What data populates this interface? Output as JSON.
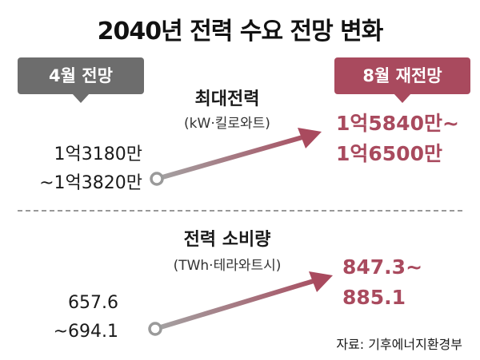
{
  "title": "2040년 전력 수요 전망 변화",
  "labels": {
    "old_forecast": "4월 전망",
    "new_forecast": "8월 재전망"
  },
  "peak_demand": {
    "title": "최대전력",
    "unit": "(kW·킬로와트)",
    "old_line1": "1억3180만",
    "old_line2": "~1억3820만",
    "new_line1": "1억5840만~",
    "new_line2": "1억6500만"
  },
  "consumption": {
    "title": "전력 소비량",
    "unit": "(TWh·테라와트시)",
    "old_line1": "657.6",
    "old_line2": "~694.1",
    "new_line1": "847.3~",
    "new_line2": "885.1"
  },
  "source": "자료: 기후에너지환경부",
  "colors": {
    "old": "#6d6d6d",
    "new": "#a94a5e",
    "arrow_start": "#9a9a9a",
    "arrow_end": "#a94a5e"
  }
}
